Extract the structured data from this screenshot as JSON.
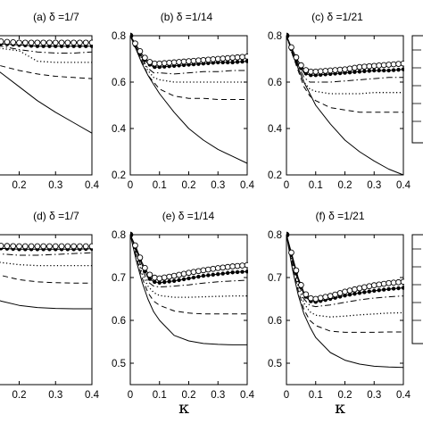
{
  "x_axis_label": "κ",
  "legend_boxes": 2,
  "chart_data": [
    {
      "type": "line",
      "title": "(a) δ =1/7",
      "xlabel": "",
      "ylabel": "",
      "xlim": [
        0,
        0.4
      ],
      "ylim": [
        0.2,
        0.8
      ],
      "xticks": [
        ".1",
        "0.2",
        "0.3",
        "0.4"
      ],
      "yticks": [],
      "x": [
        0,
        0.02,
        0.04,
        0.06,
        0.08,
        0.1,
        0.15,
        0.2,
        0.25,
        0.3,
        0.35,
        0.4
      ],
      "series": [
        {
          "style": "solid",
          "values": [
            0.8,
            0.79,
            0.77,
            0.745,
            0.72,
            0.695,
            0.64,
            0.58,
            0.52,
            0.47,
            0.425,
            0.38
          ]
        },
        {
          "style": "dashed",
          "values": [
            0.8,
            0.79,
            0.78,
            0.755,
            0.725,
            0.715,
            0.67,
            0.65,
            0.635,
            0.625,
            0.62,
            0.615
          ]
        },
        {
          "style": "dotted",
          "values": [
            0.8,
            0.79,
            0.785,
            0.775,
            0.77,
            0.76,
            0.745,
            0.735,
            0.69,
            0.685,
            0.685,
            0.685
          ]
        },
        {
          "style": "dashdot",
          "values": [
            0.8,
            0.79,
            0.785,
            0.78,
            0.77,
            0.765,
            0.755,
            0.74,
            0.73,
            0.725,
            0.725,
            0.73
          ]
        },
        {
          "style": "dot-marker",
          "values": [
            0.8,
            0.79,
            0.785,
            0.78,
            0.775,
            0.775,
            0.765,
            0.76,
            0.755,
            0.755,
            0.755,
            0.755
          ]
        },
        {
          "style": "circle-marker",
          "values": [
            0.8,
            0.795,
            0.79,
            0.785,
            0.78,
            0.78,
            0.775,
            0.77,
            0.77,
            0.77,
            0.77,
            0.77
          ]
        }
      ]
    },
    {
      "type": "line",
      "title": "(b) δ =1/14",
      "xlabel": "",
      "ylabel": "",
      "xlim": [
        0,
        0.4
      ],
      "ylim": [
        0.2,
        0.8
      ],
      "xticks": [
        "0",
        "0.1",
        "0.2",
        "0.3",
        "0.4"
      ],
      "yticks": [
        "0.2",
        "0.4",
        "0.6",
        "0.8"
      ],
      "x": [
        0,
        0.02,
        0.04,
        0.06,
        0.08,
        0.1,
        0.15,
        0.2,
        0.25,
        0.3,
        0.35,
        0.4
      ],
      "series": [
        {
          "style": "solid",
          "values": [
            0.8,
            0.74,
            0.68,
            0.63,
            0.59,
            0.55,
            0.47,
            0.4,
            0.35,
            0.31,
            0.28,
            0.25
          ]
        },
        {
          "style": "dashed",
          "values": [
            0.8,
            0.75,
            0.69,
            0.63,
            0.6,
            0.57,
            0.54,
            0.53,
            0.53,
            0.525,
            0.525,
            0.525
          ]
        },
        {
          "style": "dotted",
          "values": [
            0.8,
            0.75,
            0.7,
            0.65,
            0.62,
            0.61,
            0.6,
            0.6,
            0.6,
            0.6,
            0.6,
            0.6
          ]
        },
        {
          "style": "dashdot",
          "values": [
            0.8,
            0.75,
            0.7,
            0.66,
            0.64,
            0.64,
            0.635,
            0.64,
            0.645,
            0.645,
            0.65,
            0.65
          ]
        },
        {
          "style": "dot-marker",
          "values": [
            0.8,
            0.75,
            0.71,
            0.68,
            0.665,
            0.665,
            0.67,
            0.675,
            0.68,
            0.685,
            0.685,
            0.69
          ]
        },
        {
          "style": "circle-marker",
          "values": [
            0.8,
            0.76,
            0.72,
            0.69,
            0.68,
            0.68,
            0.685,
            0.69,
            0.695,
            0.7,
            0.705,
            0.71
          ]
        }
      ]
    },
    {
      "type": "line",
      "title": "(c) δ =1/21",
      "xlabel": "",
      "ylabel": "",
      "xlim": [
        0,
        0.4
      ],
      "ylim": [
        0.2,
        0.8
      ],
      "xticks": [
        "0",
        "0.1",
        "0.2",
        "0.3",
        "0.4"
      ],
      "yticks": [
        "0.2",
        "0.4",
        "0.6",
        "0.8"
      ],
      "x": [
        0,
        0.02,
        0.04,
        0.06,
        0.08,
        0.1,
        0.15,
        0.2,
        0.25,
        0.3,
        0.35,
        0.4
      ],
      "series": [
        {
          "style": "solid",
          "values": [
            0.8,
            0.73,
            0.66,
            0.6,
            0.55,
            0.5,
            0.42,
            0.35,
            0.3,
            0.26,
            0.225,
            0.2
          ]
        },
        {
          "style": "dashed",
          "values": [
            0.8,
            0.72,
            0.65,
            0.58,
            0.54,
            0.52,
            0.49,
            0.48,
            0.47,
            0.47,
            0.47,
            0.47
          ]
        },
        {
          "style": "dotted",
          "values": [
            0.8,
            0.72,
            0.66,
            0.6,
            0.57,
            0.56,
            0.55,
            0.55,
            0.55,
            0.555,
            0.555,
            0.555
          ]
        },
        {
          "style": "dashdot",
          "values": [
            0.8,
            0.73,
            0.67,
            0.62,
            0.6,
            0.6,
            0.6,
            0.605,
            0.61,
            0.615,
            0.62,
            0.62
          ]
        },
        {
          "style": "dot-marker",
          "values": [
            0.8,
            0.73,
            0.68,
            0.64,
            0.63,
            0.63,
            0.635,
            0.64,
            0.645,
            0.65,
            0.65,
            0.655
          ]
        },
        {
          "style": "circle-marker",
          "values": [
            0.8,
            0.74,
            0.69,
            0.655,
            0.645,
            0.645,
            0.65,
            0.655,
            0.665,
            0.67,
            0.675,
            0.68
          ]
        }
      ]
    },
    {
      "type": "line",
      "title": "(d) δ =1/7",
      "xlabel": "",
      "ylabel": "",
      "xlim": [
        0,
        0.4
      ],
      "ylim": [
        0.45,
        0.8
      ],
      "xticks": [
        ".1",
        "0.2",
        "0.3",
        "0.4"
      ],
      "yticks": [],
      "x": [
        0,
        0.02,
        0.04,
        0.06,
        0.08,
        0.1,
        0.15,
        0.2,
        0.25,
        0.3,
        0.35,
        0.4
      ],
      "series": [
        {
          "style": "solid",
          "values": [
            0.8,
            0.77,
            0.74,
            0.71,
            0.685,
            0.665,
            0.645,
            0.635,
            0.63,
            0.628,
            0.627,
            0.627
          ]
        },
        {
          "style": "dashed",
          "values": [
            0.8,
            0.785,
            0.765,
            0.745,
            0.73,
            0.72,
            0.705,
            0.695,
            0.69,
            0.688,
            0.687,
            0.687
          ]
        },
        {
          "style": "dotted",
          "values": [
            0.8,
            0.79,
            0.775,
            0.76,
            0.75,
            0.745,
            0.735,
            0.73,
            0.728,
            0.728,
            0.728,
            0.728
          ]
        },
        {
          "style": "dashdot",
          "values": [
            0.8,
            0.79,
            0.78,
            0.77,
            0.762,
            0.76,
            0.755,
            0.752,
            0.752,
            0.754,
            0.756,
            0.758
          ]
        },
        {
          "style": "dot-marker",
          "values": [
            0.8,
            0.792,
            0.785,
            0.778,
            0.772,
            0.77,
            0.768,
            0.766,
            0.766,
            0.766,
            0.766,
            0.767
          ]
        },
        {
          "style": "circle-marker",
          "values": [
            0.8,
            0.795,
            0.788,
            0.782,
            0.778,
            0.776,
            0.774,
            0.773,
            0.773,
            0.773,
            0.773,
            0.773
          ]
        }
      ]
    },
    {
      "type": "line",
      "title": "(e) δ =1/14",
      "xlabel": "",
      "ylabel": "",
      "xlim": [
        0,
        0.4
      ],
      "ylim": [
        0.45,
        0.8
      ],
      "xticks": [
        "0",
        "0.1",
        "0.2",
        "0.3",
        "0.4"
      ],
      "yticks": [
        "0.5",
        "0.6",
        "0.7",
        "0.8"
      ],
      "x": [
        0,
        0.02,
        0.04,
        0.06,
        0.08,
        0.1,
        0.15,
        0.2,
        0.25,
        0.3,
        0.35,
        0.4
      ],
      "series": [
        {
          "style": "solid",
          "values": [
            0.8,
            0.74,
            0.69,
            0.65,
            0.62,
            0.6,
            0.565,
            0.552,
            0.546,
            0.544,
            0.543,
            0.543
          ]
        },
        {
          "style": "dashed",
          "values": [
            0.8,
            0.75,
            0.7,
            0.665,
            0.645,
            0.635,
            0.622,
            0.617,
            0.615,
            0.615,
            0.615,
            0.615
          ]
        },
        {
          "style": "dotted",
          "values": [
            0.8,
            0.755,
            0.71,
            0.68,
            0.665,
            0.658,
            0.654,
            0.654,
            0.655,
            0.656,
            0.657,
            0.657
          ]
        },
        {
          "style": "dashdot",
          "values": [
            0.8,
            0.76,
            0.72,
            0.69,
            0.68,
            0.678,
            0.68,
            0.683,
            0.687,
            0.69,
            0.692,
            0.694
          ]
        },
        {
          "style": "dot-marker",
          "values": [
            0.8,
            0.765,
            0.73,
            0.7,
            0.69,
            0.688,
            0.692,
            0.698,
            0.704,
            0.708,
            0.712,
            0.714
          ]
        },
        {
          "style": "circle-marker",
          "values": [
            0.8,
            0.77,
            0.735,
            0.71,
            0.7,
            0.698,
            0.704,
            0.711,
            0.717,
            0.722,
            0.726,
            0.729
          ]
        }
      ]
    },
    {
      "type": "line",
      "title": "(f) δ =1/21",
      "xlabel": "",
      "ylabel": "",
      "xlim": [
        0,
        0.4
      ],
      "ylim": [
        0.45,
        0.8
      ],
      "xticks": [
        "0",
        "0.1",
        "0.2",
        "0.3",
        "0.4"
      ],
      "yticks": [
        "0.5",
        "0.6",
        "0.7",
        "0.8"
      ],
      "x": [
        0,
        0.02,
        0.04,
        0.06,
        0.08,
        0.1,
        0.15,
        0.2,
        0.25,
        0.3,
        0.35,
        0.4
      ],
      "series": [
        {
          "style": "solid",
          "values": [
            0.8,
            0.72,
            0.66,
            0.615,
            0.585,
            0.56,
            0.525,
            0.507,
            0.498,
            0.493,
            0.491,
            0.49
          ]
        },
        {
          "style": "dashed",
          "values": [
            0.8,
            0.73,
            0.67,
            0.625,
            0.6,
            0.588,
            0.575,
            0.572,
            0.572,
            0.572,
            0.573,
            0.573
          ]
        },
        {
          "style": "dotted",
          "values": [
            0.8,
            0.735,
            0.68,
            0.64,
            0.62,
            0.612,
            0.608,
            0.61,
            0.613,
            0.615,
            0.617,
            0.618
          ]
        },
        {
          "style": "dashdot",
          "values": [
            0.8,
            0.74,
            0.69,
            0.65,
            0.635,
            0.632,
            0.636,
            0.642,
            0.648,
            0.652,
            0.655,
            0.657
          ]
        },
        {
          "style": "dot-marker",
          "values": [
            0.8,
            0.745,
            0.695,
            0.66,
            0.645,
            0.643,
            0.65,
            0.658,
            0.664,
            0.669,
            0.673,
            0.676
          ]
        },
        {
          "style": "circle-marker",
          "values": [
            0.8,
            0.75,
            0.7,
            0.665,
            0.652,
            0.65,
            0.657,
            0.667,
            0.675,
            0.682,
            0.687,
            0.69
          ]
        }
      ]
    }
  ]
}
